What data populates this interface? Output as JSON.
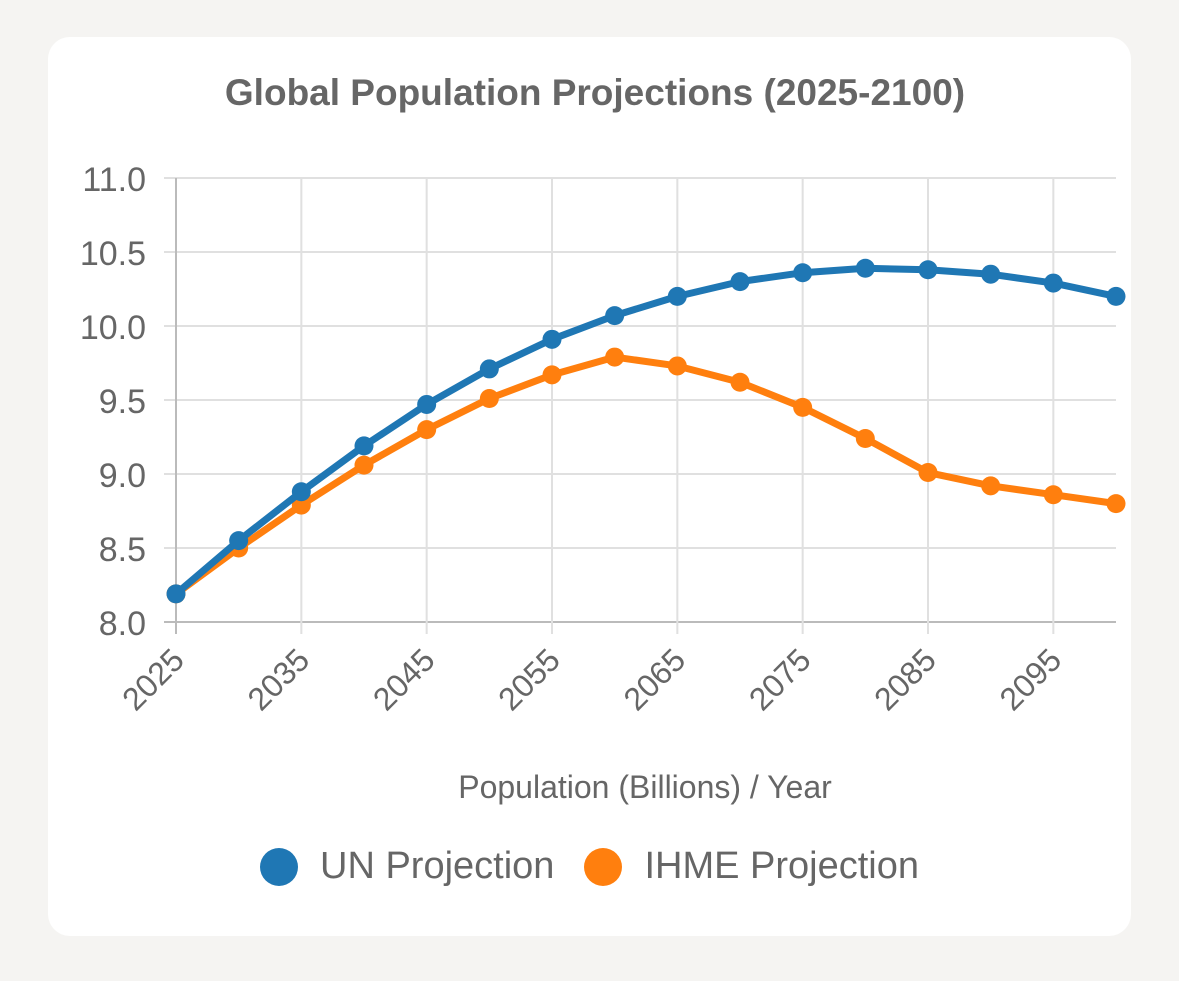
{
  "chart_data": {
    "type": "line",
    "title": "Global Population Projections (2025-2100)",
    "xlabel": "Population (Billions) / Year",
    "ylabel": "",
    "x": [
      2025,
      2030,
      2035,
      2040,
      2045,
      2050,
      2055,
      2060,
      2065,
      2070,
      2075,
      2080,
      2085,
      2090,
      2095,
      2100
    ],
    "xtick_labels": [
      "2025",
      "2035",
      "2045",
      "2055",
      "2065",
      "2075",
      "2085",
      "2095"
    ],
    "ytick_labels": [
      "8.0",
      "8.5",
      "9.0",
      "9.5",
      "10.0",
      "10.5",
      "11.0"
    ],
    "ylim": [
      8.0,
      11.0
    ],
    "grid": true,
    "legend_position": "bottom",
    "series": [
      {
        "name": "UN Projection",
        "color": "#1f77b4",
        "values": [
          8.19,
          8.55,
          8.88,
          9.19,
          9.47,
          9.71,
          9.91,
          10.07,
          10.2,
          10.3,
          10.36,
          10.39,
          10.38,
          10.35,
          10.29,
          10.2
        ]
      },
      {
        "name": "IHME Projection",
        "color": "#ff7f0e",
        "values": [
          8.19,
          8.5,
          8.79,
          9.06,
          9.3,
          9.51,
          9.67,
          9.79,
          9.73,
          9.62,
          9.45,
          9.24,
          9.01,
          8.92,
          8.86,
          8.8
        ]
      }
    ]
  }
}
